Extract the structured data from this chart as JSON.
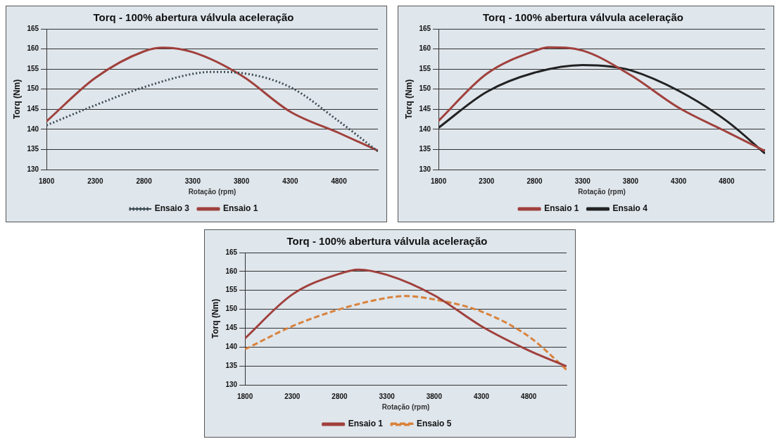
{
  "chart_data": [
    {
      "type": "line",
      "title": "Torq - 100% abertura válvula aceleração",
      "xlabel": "Rotação (rpm)",
      "ylabel": "Torq (Nm)",
      "xlim": [
        1800,
        5200
      ],
      "xticks": [
        1800,
        2300,
        2800,
        3300,
        3800,
        4300,
        4800
      ],
      "ylim": [
        130,
        165
      ],
      "yticks": [
        130,
        135,
        140,
        145,
        150,
        155,
        160,
        165
      ],
      "grid": "y",
      "legend": "bottom",
      "marker": "none",
      "series": [
        {
          "name": "Ensaio 3",
          "color": "#3a4a50",
          "line_style": "dotted",
          "x": [
            1800,
            2300,
            2800,
            3300,
            3500,
            3800,
            4300,
            4800,
            5200
          ],
          "values": [
            141,
            146,
            150.5,
            153.8,
            154.3,
            154,
            150.5,
            142,
            134.5
          ]
        },
        {
          "name": "Ensaio 1",
          "color": "#a0403c",
          "line_style": "solid",
          "x": [
            1800,
            2300,
            2800,
            3000,
            3300,
            3800,
            4300,
            4800,
            5200
          ],
          "values": [
            142,
            152.8,
            159.4,
            160.3,
            159.2,
            153.4,
            144.4,
            139.1,
            134.7
          ]
        }
      ]
    },
    {
      "type": "line",
      "title": "Torq - 100% abertura válvula aceleração",
      "xlabel": "Rotação (rpm)",
      "ylabel": "Torq (Nm)",
      "xlim": [
        1800,
        5200
      ],
      "xticks": [
        1800,
        2300,
        2800,
        3300,
        3800,
        4300,
        4800
      ],
      "ylim": [
        130,
        165
      ],
      "yticks": [
        130,
        135,
        140,
        145,
        150,
        155,
        160,
        165
      ],
      "grid": "y",
      "legend": "bottom",
      "marker": "none",
      "series": [
        {
          "name": "Ensaio 1",
          "color": "#a0403c",
          "line_style": "solid",
          "x": [
            1800,
            2300,
            2800,
            2950,
            3300,
            3800,
            4300,
            4800,
            5200
          ],
          "values": [
            142.1,
            153.8,
            159.5,
            160.4,
            159.6,
            153.5,
            145.4,
            139.4,
            134.6
          ]
        },
        {
          "name": "Ensaio 4",
          "color": "#222222",
          "line_style": "solid",
          "x": [
            1800,
            2300,
            2800,
            3300,
            3600,
            3800,
            4300,
            4800,
            5200
          ],
          "values": [
            140.4,
            149.3,
            154.1,
            156,
            155.6,
            154.7,
            149.6,
            142.1,
            134
          ]
        }
      ]
    },
    {
      "type": "line",
      "title": "Torq - 100% abertura válvula aceleração",
      "xlabel": "Rotação (rpm)",
      "ylabel": "Torq (Nm)",
      "xlim": [
        1800,
        5200
      ],
      "xticks": [
        1800,
        2300,
        2800,
        3300,
        3800,
        4300,
        4800
      ],
      "ylim": [
        130,
        165
      ],
      "yticks": [
        130,
        135,
        140,
        145,
        150,
        155,
        160,
        165
      ],
      "grid": "y",
      "legend": "bottom",
      "marker": "none",
      "series": [
        {
          "name": "Ensaio 1",
          "color": "#a0403c",
          "line_style": "solid",
          "x": [
            1800,
            2300,
            2800,
            3000,
            3300,
            3800,
            4300,
            4800,
            5200
          ],
          "values": [
            142.3,
            153.9,
            159.4,
            160.5,
            159.1,
            153.7,
            145.5,
            139.1,
            134.9
          ]
        },
        {
          "name": "Ensaio 5",
          "color": "#d9823b",
          "line_style": "dashed",
          "x": [
            1800,
            2300,
            2800,
            3300,
            3500,
            3800,
            4300,
            4800,
            5200
          ],
          "values": [
            139.4,
            145.5,
            150,
            153,
            153.5,
            152.6,
            149.4,
            142.8,
            134
          ]
        }
      ]
    }
  ]
}
